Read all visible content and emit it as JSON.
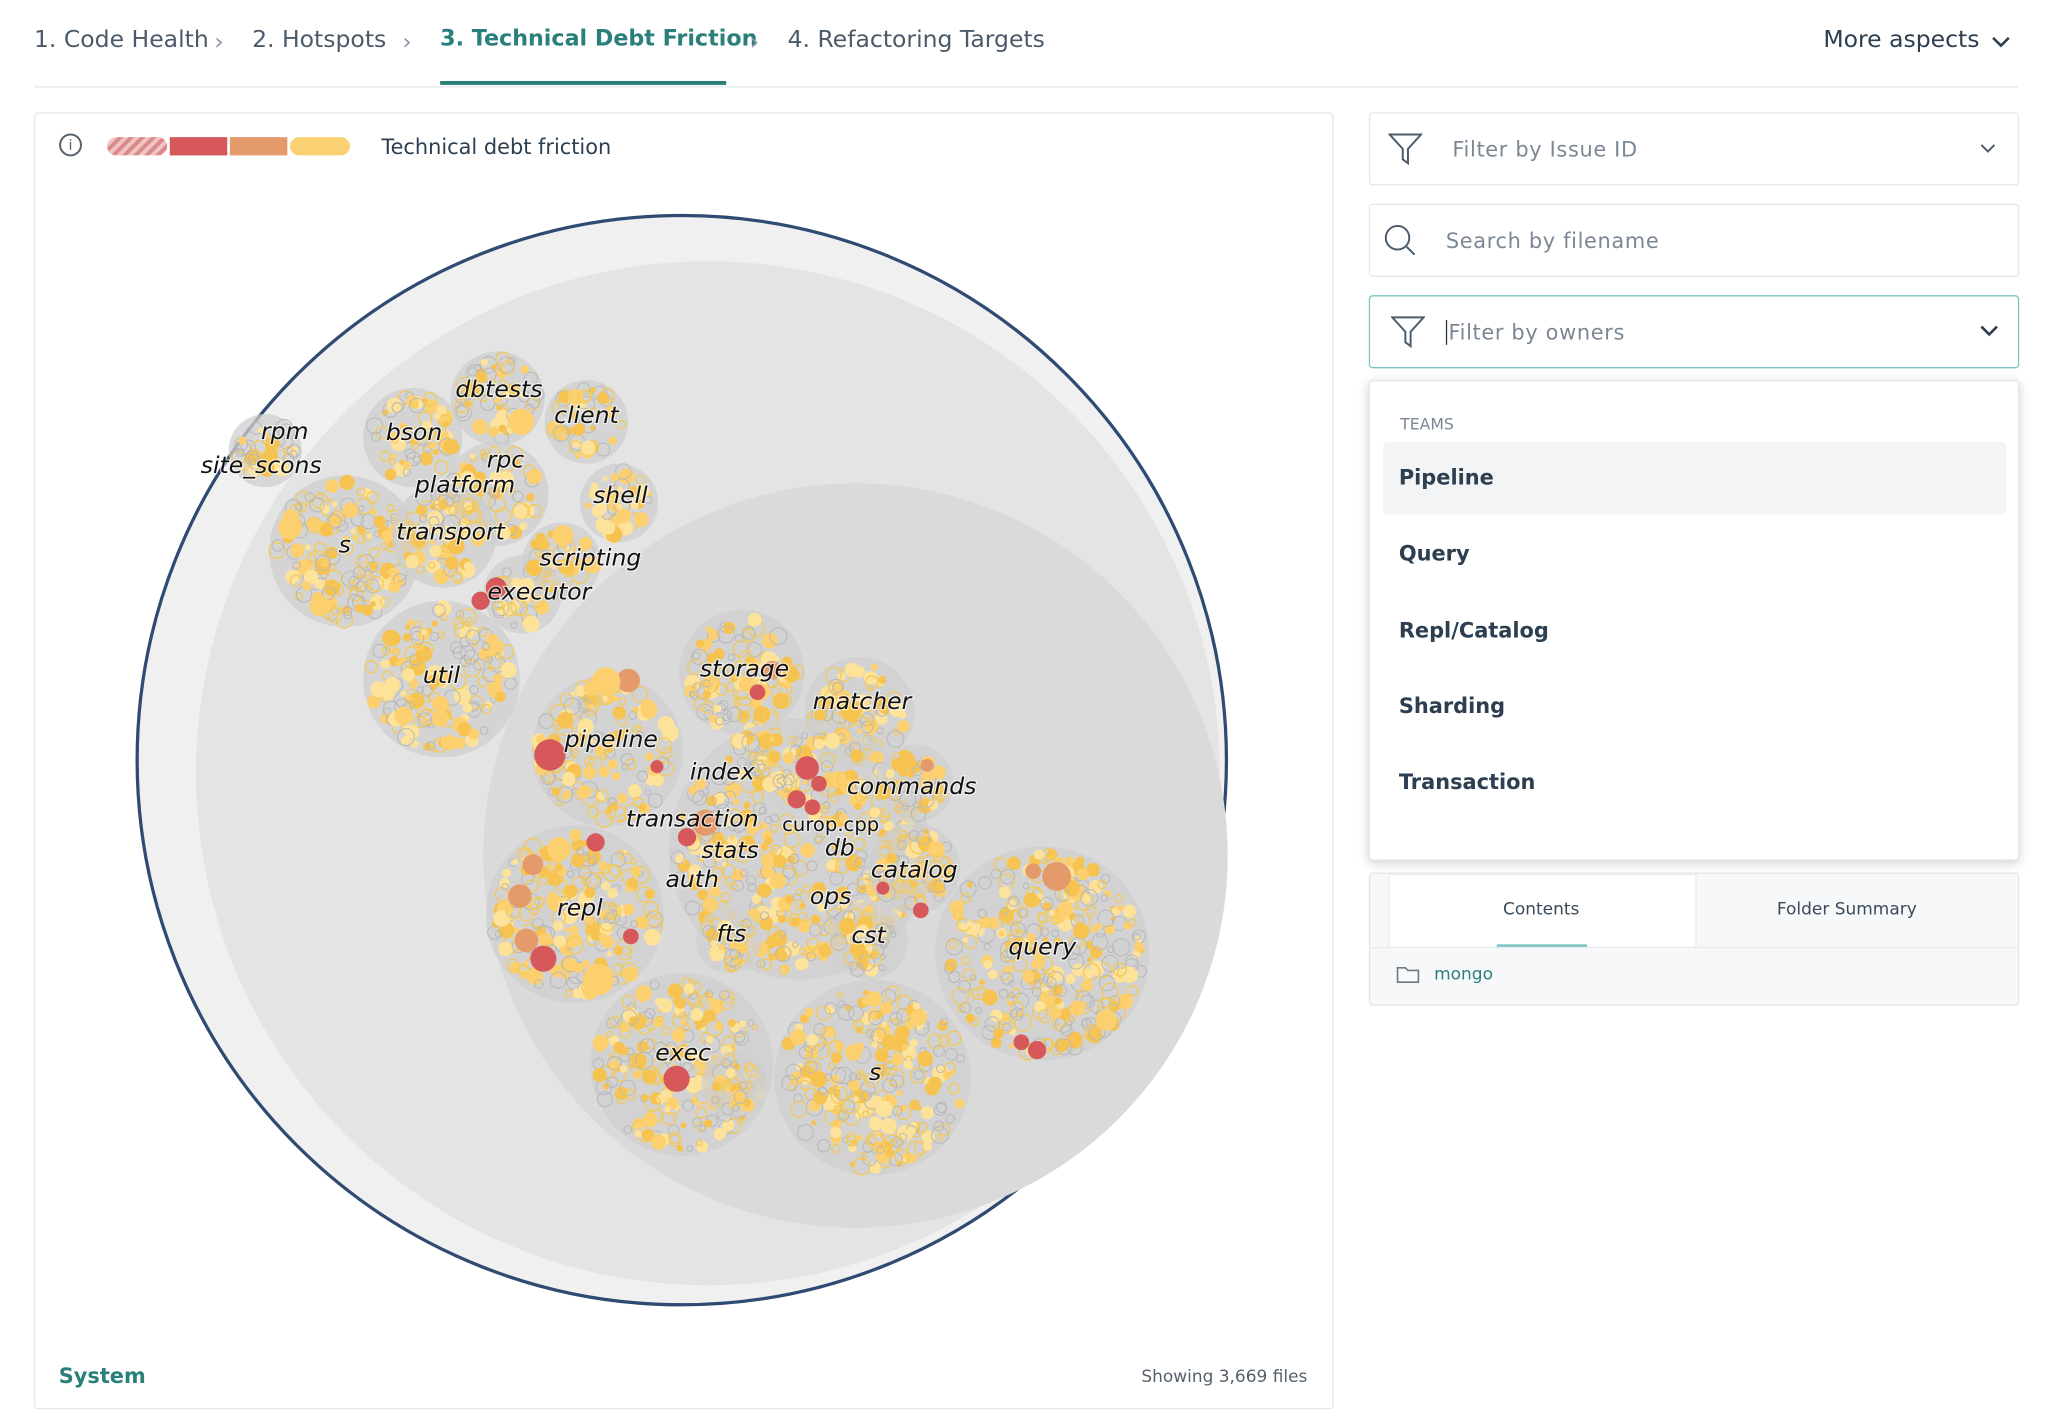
{
  "breadcrumb": {
    "steps": [
      "1. Code Health",
      "2. Hotspots",
      "3. Technical Debt Friction",
      "4. Refactoring Targets"
    ],
    "more": "More aspects"
  },
  "map": {
    "legend": "Technical debt friction",
    "labels": [
      "rpm",
      "site_scons",
      "dbtests",
      "client",
      "bson",
      "rpc",
      "platform",
      "shell",
      "transport",
      "s",
      "scripting",
      "executor",
      "util",
      "storage",
      "matcher",
      "pipeline",
      "index",
      "commands",
      "transaction",
      "curop.cpp",
      "db",
      "stats",
      "catalog",
      "auth",
      "ops",
      "repl",
      "fts",
      "cst",
      "query",
      "exec",
      "s"
    ],
    "footer_left": "System",
    "footer_right": "Showing 3,669 files"
  },
  "filters": {
    "issue_id": "Filter by Issue ID",
    "filename": "Search by filename",
    "owners": "Filter by owners"
  },
  "dropdown": {
    "heading": "TEAMS",
    "items": [
      "Pipeline",
      "Query",
      "Repl/Catalog",
      "Sharding",
      "Transaction"
    ]
  },
  "details": {
    "tabs": [
      "Contents",
      "Folder Summary"
    ],
    "rows": [
      "mongo"
    ]
  }
}
